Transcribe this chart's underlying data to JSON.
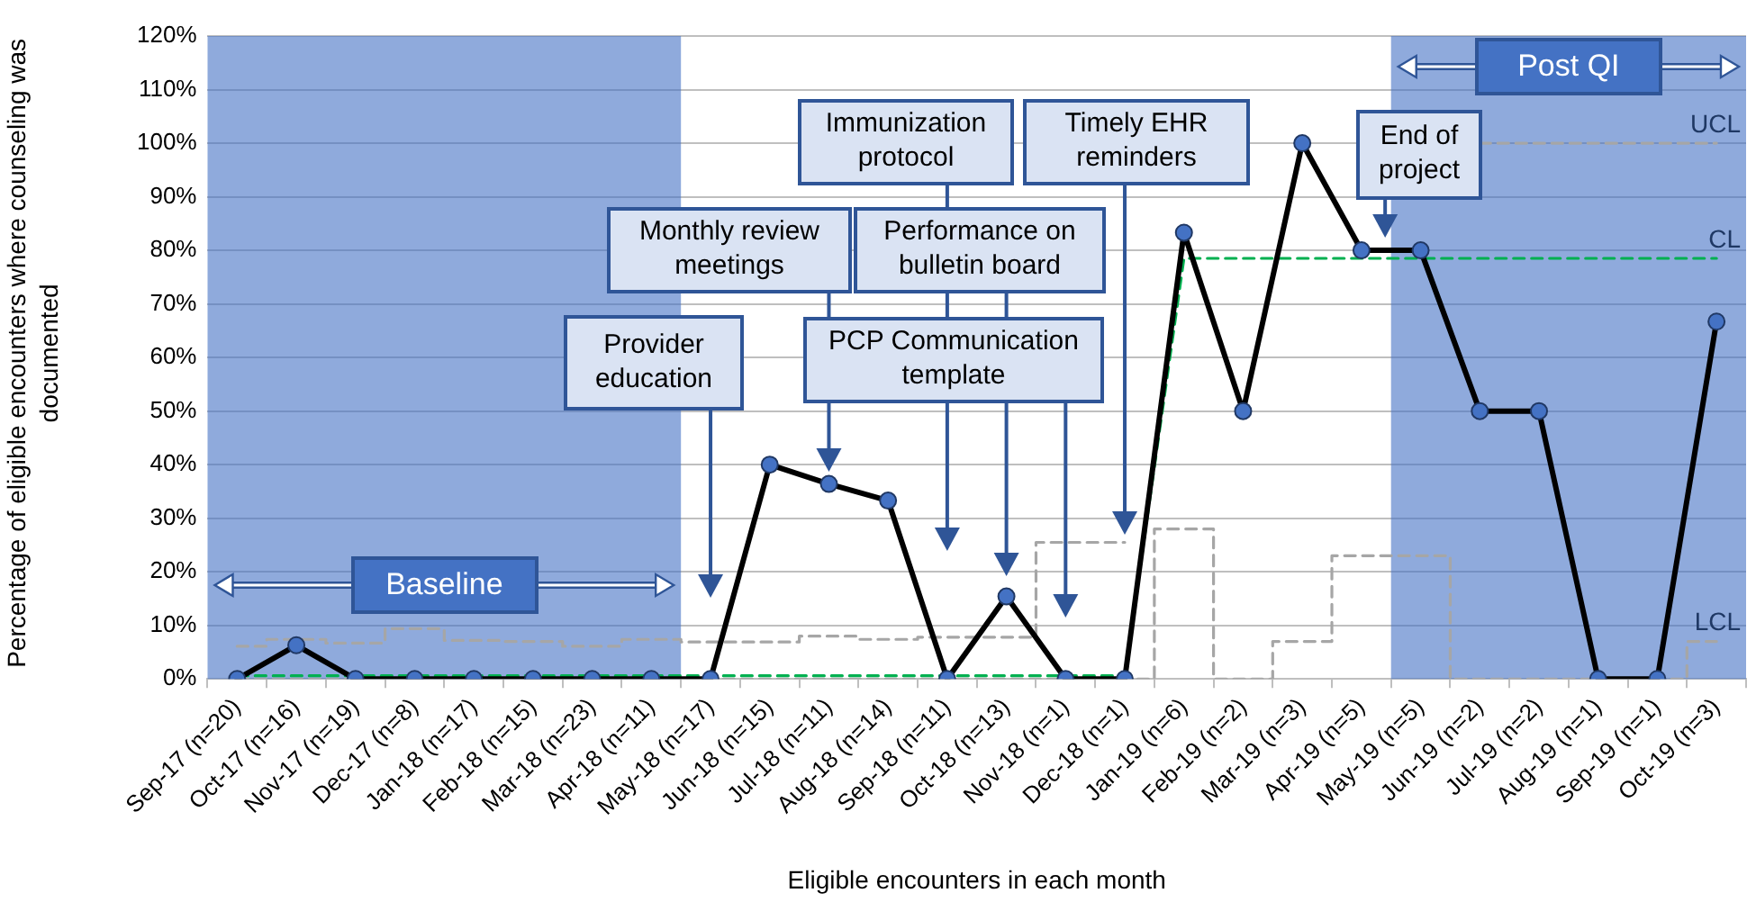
{
  "chart_data": {
    "type": "line",
    "ylabel": "Percentage of eligible encounters where counseling was documented",
    "xlabel": "Eligible encounters in each month",
    "categories": [
      "Sep-17 (n=20)",
      "Oct-17 (n=16)",
      "Nov-17 (n=19)",
      "Dec-17 (n=8)",
      "Jan-18 (n=17)",
      "Feb-18 (n=15)",
      "Mar-18 (n=23)",
      "Apr-18 (n=11)",
      "May-18 (n=17)",
      "Jun-18 (n=15)",
      "Jul-18 (n=11)",
      "Aug-18 (n=14)",
      "Sep-18 (n=11)",
      "Oct-18 (n=13)",
      "Nov-18 (n=1)",
      "Dec-18 (n=1)",
      "Jan-19 (n=6)",
      "Feb-19 (n=2)",
      "Mar-19 (n=3)",
      "Apr-19 (n=5)",
      "May-19 (n=5)",
      "Jun-19 (n=2)",
      "Jul-19 (n=2)",
      "Aug-19 (n=1)",
      "Sep-19 (n=1)",
      "Oct-19 (n=3)"
    ],
    "series": [
      {
        "type": "step",
        "name": "UCL",
        "color": "#a6a6a6",
        "line_style": "dashed",
        "marker": "none",
        "values": [
          6.1,
          7.4,
          6.7,
          9.4,
          7.2,
          7.0,
          6.1,
          7.4,
          6.9,
          6.9,
          8.0,
          7.4,
          7.8,
          7.8,
          25.5,
          25.5,
          null,
          null,
          null,
          null,
          null,
          100,
          100,
          100,
          100,
          100
        ]
      },
      {
        "type": "line",
        "name": "CL",
        "color": "#00b050",
        "line_style": "dashed",
        "marker": "none",
        "values": [
          0.6,
          0.6,
          0.6,
          0.6,
          0.6,
          0.6,
          0.6,
          0.6,
          0.6,
          0.6,
          0.6,
          0.6,
          0.6,
          0.6,
          0.6,
          0.6,
          78.5,
          78.5,
          78.5,
          78.5,
          78.5,
          78.5,
          78.5,
          78.5,
          78.5,
          78.5
        ]
      },
      {
        "type": "step",
        "name": "LCL",
        "color": "#a6a6a6",
        "line_style": "dashed",
        "marker": "none",
        "values": [
          0,
          0,
          0,
          0,
          0,
          0,
          0,
          0,
          0,
          0,
          0,
          0,
          0,
          0,
          0,
          0,
          28,
          0,
          7,
          23,
          23,
          0,
          0,
          0,
          0,
          7
        ]
      },
      {
        "type": "line",
        "color": "#000000",
        "line_style": "solid",
        "marker": "circle",
        "values": [
          0,
          6.3,
          0,
          0,
          0,
          0,
          0,
          0,
          0,
          40,
          36.4,
          33.3,
          0,
          15.4,
          0,
          0,
          83.3,
          50,
          100,
          80,
          80,
          50,
          50,
          0,
          0,
          66.7
        ]
      }
    ],
    "ylim": [
      0,
      120
    ],
    "yticks": [
      {
        "value": 0,
        "label": "0%"
      },
      {
        "value": 10,
        "label": "10%"
      },
      {
        "value": 20,
        "label": "20%"
      },
      {
        "value": 30,
        "label": "30%"
      },
      {
        "value": 40,
        "label": "40%"
      },
      {
        "value": 50,
        "label": "50%"
      },
      {
        "value": 60,
        "label": "60%"
      },
      {
        "value": 70,
        "label": "70%"
      },
      {
        "value": 80,
        "label": "80%"
      },
      {
        "value": 90,
        "label": "90%"
      },
      {
        "value": 100,
        "label": "100%"
      },
      {
        "value": 110,
        "label": "110%"
      },
      {
        "value": 120,
        "label": "120%"
      }
    ],
    "grid": "y",
    "bands": [
      {
        "axis": "x",
        "from": "Sep-17 (n=20)",
        "to": "Apr-18 (n=11)",
        "label": "Baseline",
        "color": "#4472c4"
      },
      {
        "axis": "x",
        "from": "May-19 (n=5)",
        "to": "Oct-19 (n=3)",
        "label": "Post QI",
        "color": "#4472c4"
      }
    ],
    "annotations": [
      "Provider education",
      "Monthly review meetings",
      "Immunization protocol",
      "Performance on bulletin board",
      "PCP Communication template",
      "Timely EHR reminders",
      "End of project"
    ]
  }
}
